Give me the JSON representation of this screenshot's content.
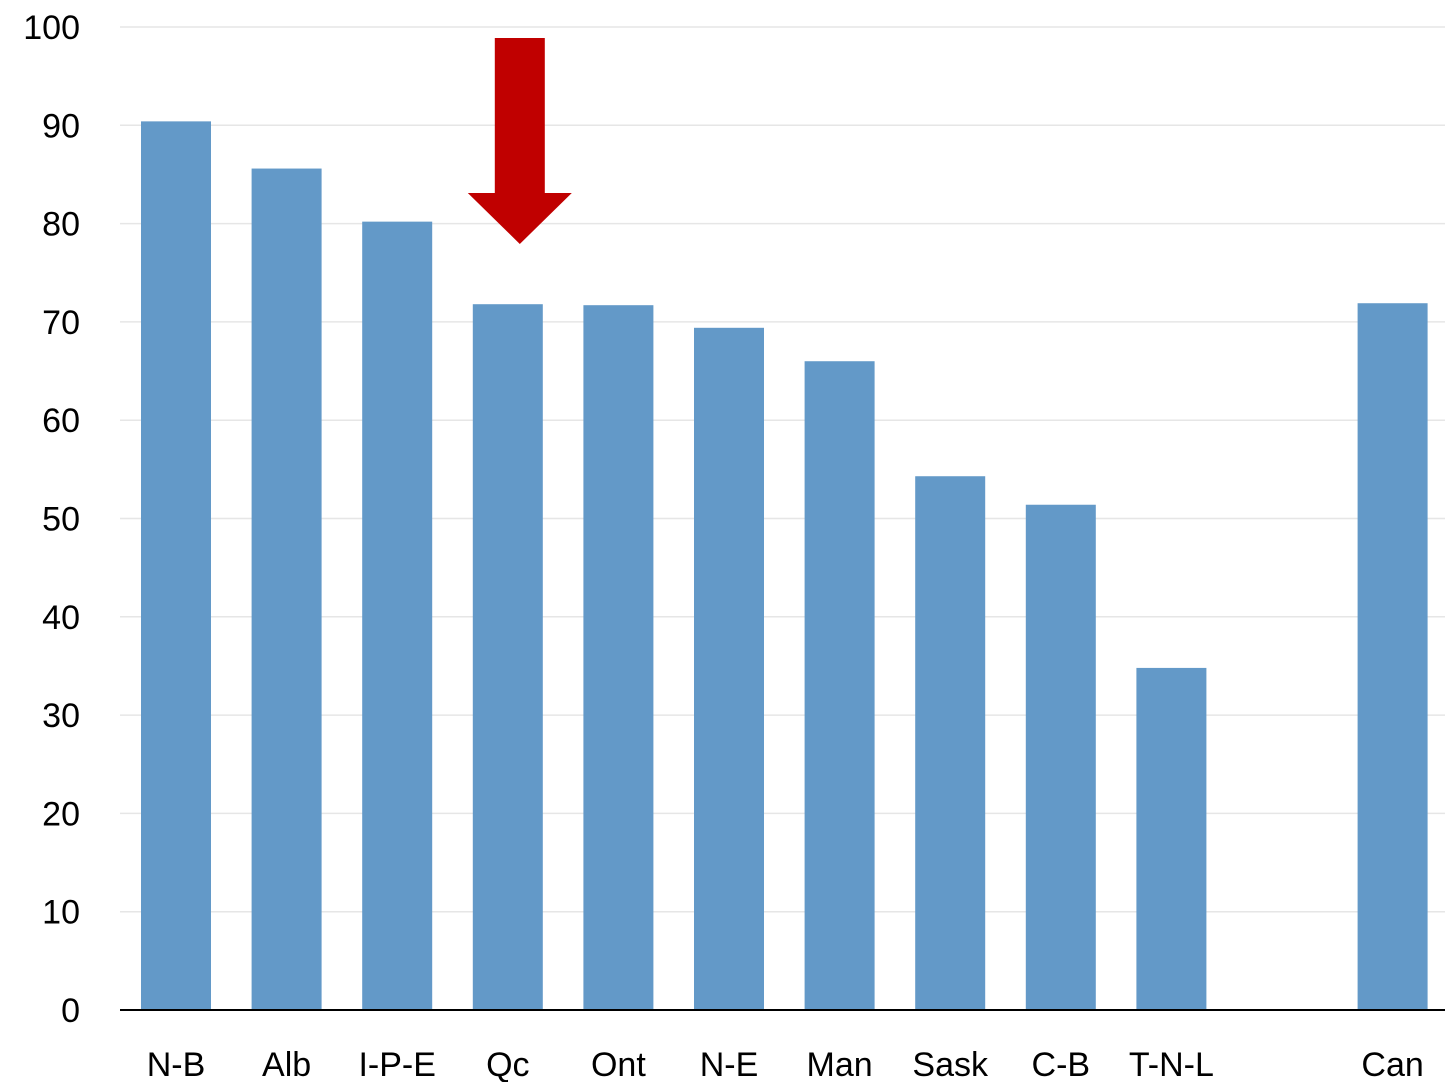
{
  "chart_data": {
    "type": "bar",
    "categories": [
      "N-B",
      "Alb",
      "I-P-E",
      "Qc",
      "Ont",
      "N-E",
      "Man",
      "Sask",
      "C-B",
      "T-N-L",
      "",
      "Can"
    ],
    "values": [
      90.4,
      85.6,
      80.2,
      71.8,
      71.7,
      69.4,
      66.0,
      54.3,
      51.4,
      34.8,
      null,
      71.9
    ],
    "ylim": [
      0,
      100
    ],
    "yticks": [
      0,
      10,
      20,
      30,
      40,
      50,
      60,
      70,
      80,
      90,
      100
    ],
    "title": "",
    "xlabel": "",
    "ylabel": "",
    "grid": true,
    "bar_color": "#6399c8",
    "annotation": {
      "type": "arrow",
      "target_category": "Qc",
      "color": "#c00000"
    }
  }
}
